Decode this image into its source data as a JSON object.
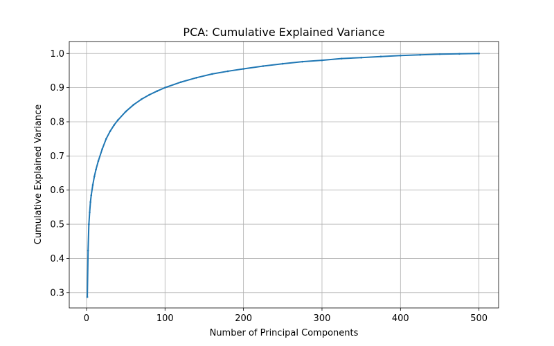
{
  "chart_data": {
    "type": "line",
    "title": "PCA: Cumulative Explained Variance",
    "xlabel": "Number of Principal Components",
    "ylabel": "Cumulative Explained Variance",
    "xlim": [
      -22,
      525
    ],
    "ylim": [
      0.255,
      1.035
    ],
    "xticks": [
      0,
      100,
      200,
      300,
      400,
      500
    ],
    "yticks": [
      0.3,
      0.4,
      0.5,
      0.6,
      0.7,
      0.8,
      0.9,
      1.0
    ],
    "grid": true,
    "line_color": "#1f77b4",
    "marker": "dot",
    "series": [
      {
        "x": [
          1,
          2,
          3,
          4,
          5,
          6,
          8,
          10,
          12,
          15,
          20,
          25,
          30,
          35,
          40,
          50,
          60,
          70,
          80,
          90,
          100,
          120,
          140,
          160,
          180,
          200,
          225,
          250,
          275,
          300,
          325,
          350,
          375,
          400,
          425,
          450,
          475,
          500
        ],
        "values": [
          0.287,
          0.423,
          0.5,
          0.535,
          0.565,
          0.585,
          0.615,
          0.64,
          0.66,
          0.685,
          0.72,
          0.75,
          0.772,
          0.79,
          0.805,
          0.83,
          0.85,
          0.866,
          0.879,
          0.89,
          0.9,
          0.916,
          0.929,
          0.94,
          0.948,
          0.955,
          0.963,
          0.97,
          0.976,
          0.98,
          0.985,
          0.988,
          0.991,
          0.994,
          0.996,
          0.998,
          0.999,
          1.0
        ]
      }
    ]
  }
}
